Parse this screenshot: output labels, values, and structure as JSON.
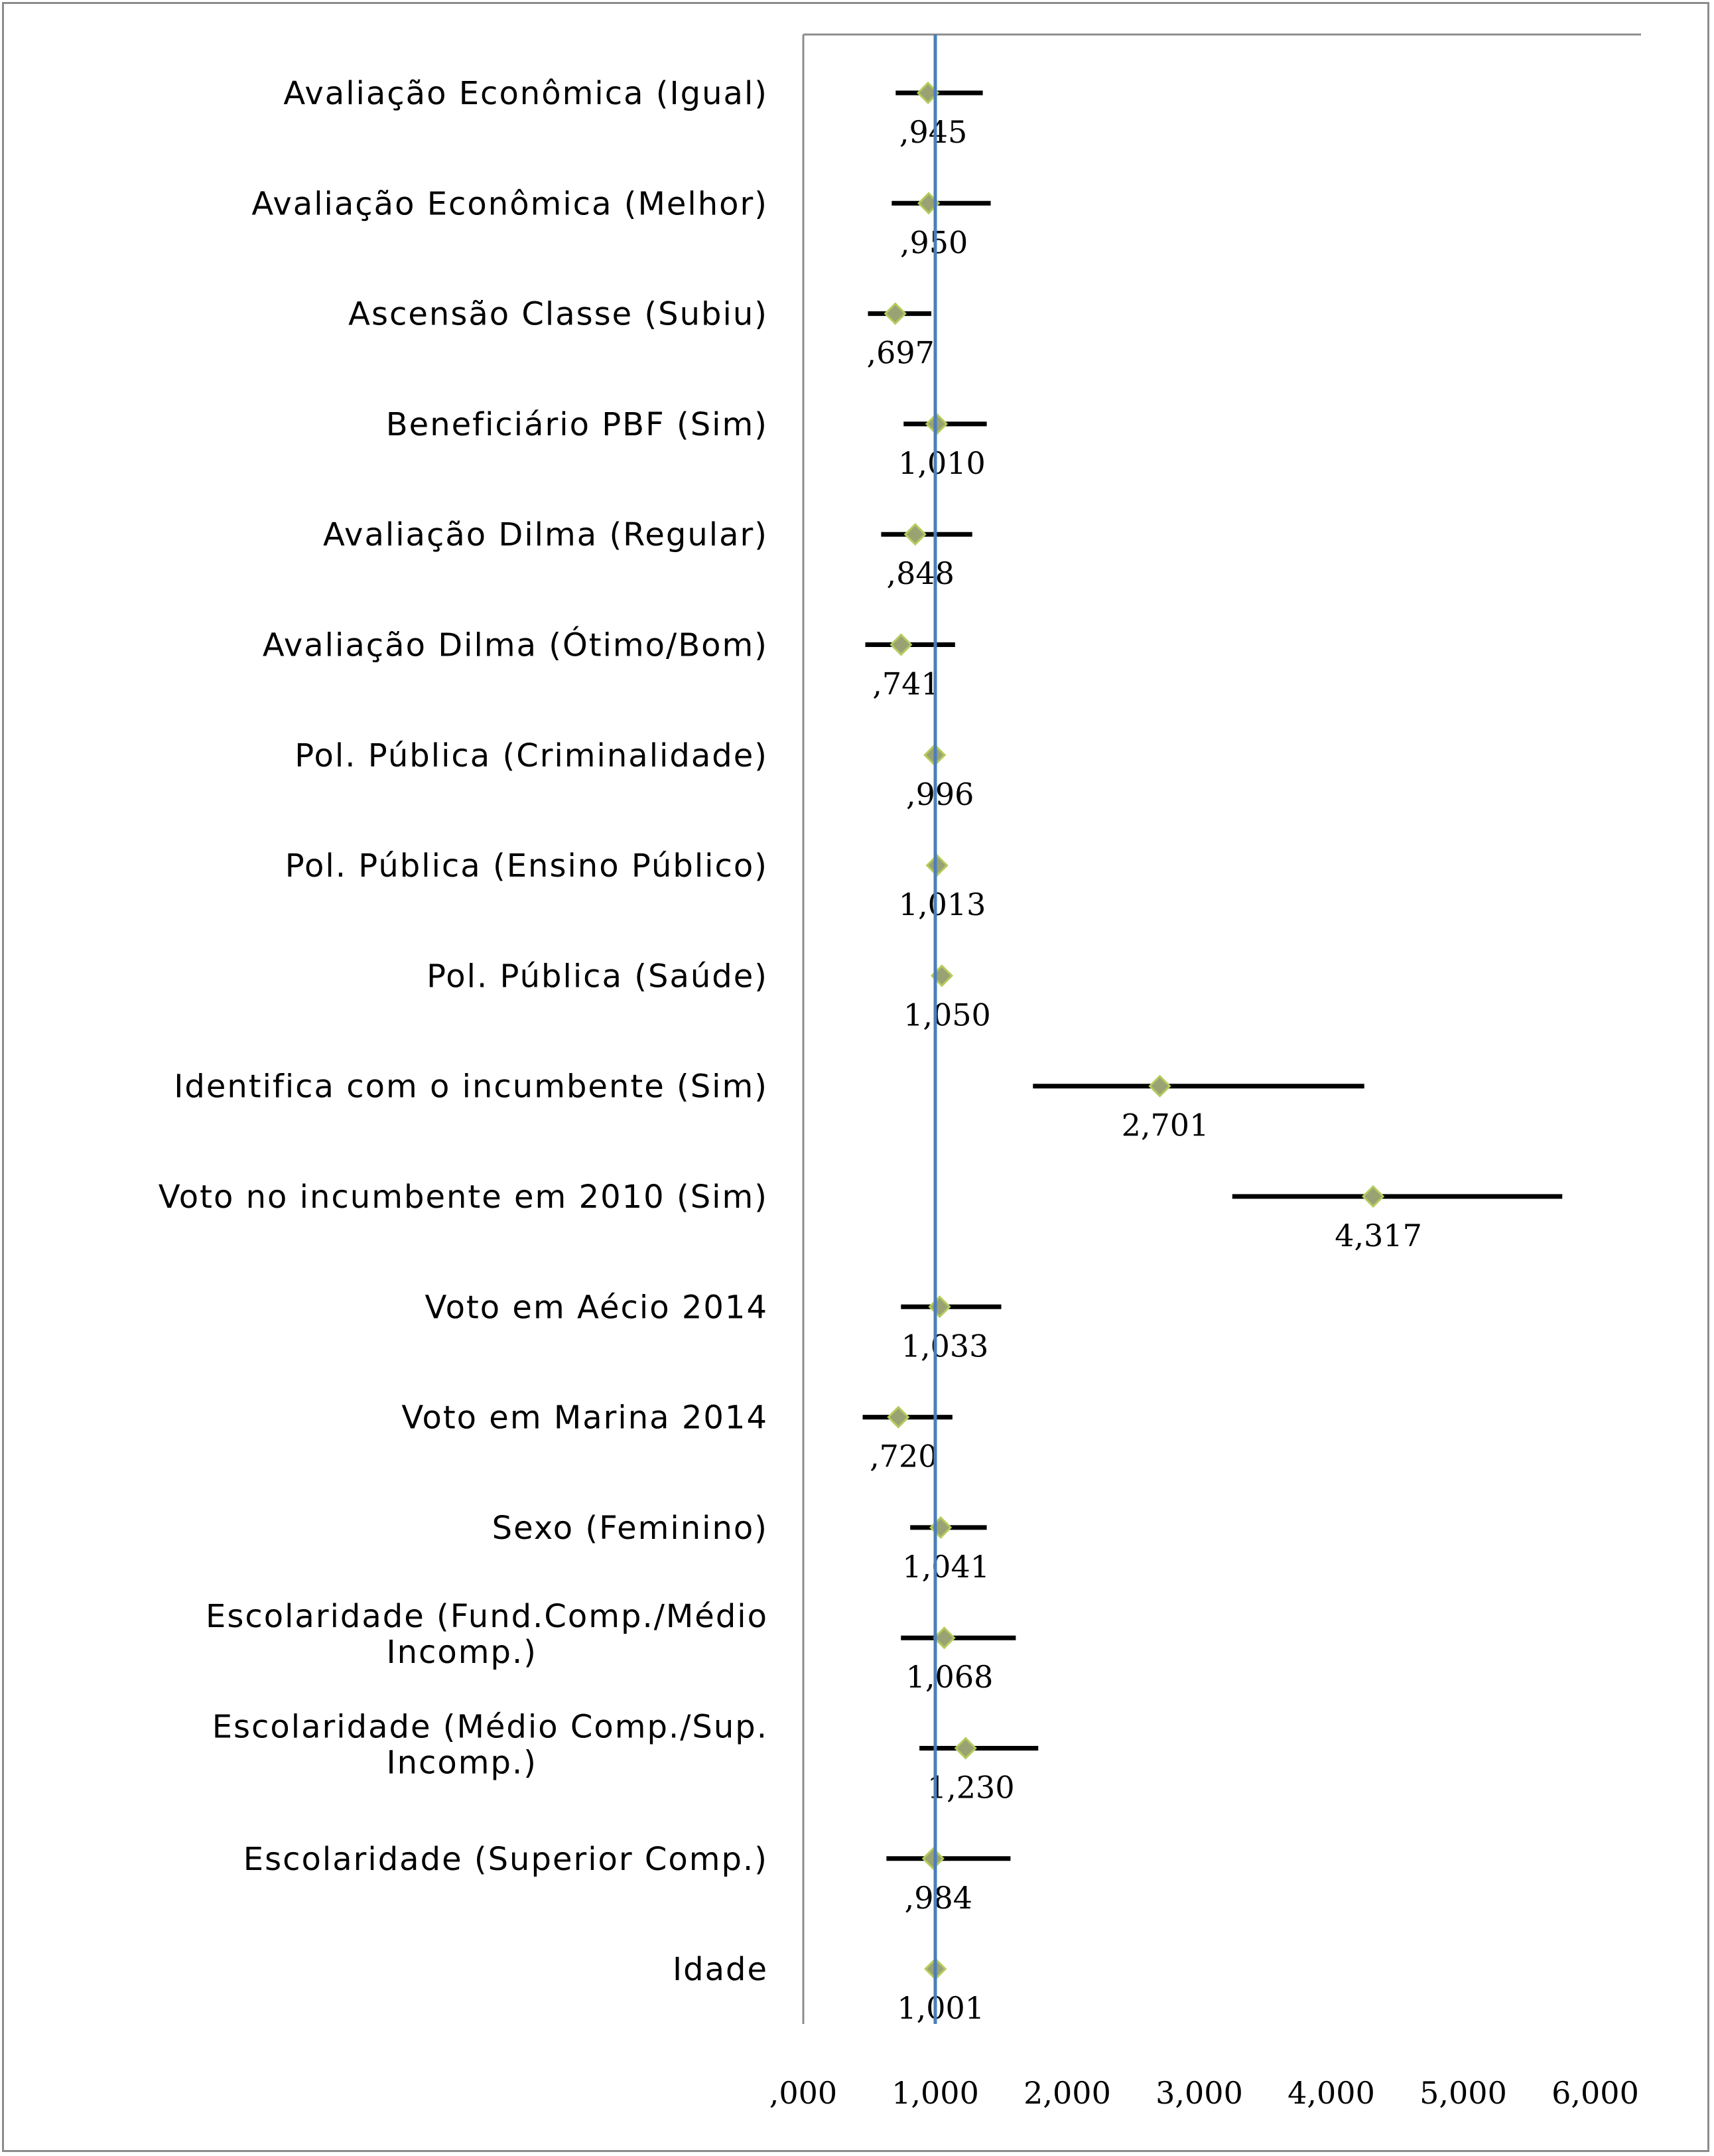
{
  "chart_data": {
    "type": "forest",
    "title": "",
    "xlabel": "",
    "ylabel": "",
    "xlim": [
      0,
      6
    ],
    "reference_line": 1,
    "x_tick_labels": [
      ",000",
      "1,000",
      "2,000",
      "3,000",
      "4,000",
      "5,000",
      "6,000"
    ],
    "x_ticks": [
      0,
      1,
      2,
      3,
      4,
      5,
      6
    ],
    "colors": {
      "marker_fill": "#9aa274",
      "marker_stroke": "#b4cc5c",
      "reference_line": "#4a7ebb",
      "ci_line": "#000000",
      "axis": "#8c8c8c"
    },
    "rows": [
      {
        "category": [
          "Avaliação Econômica (Igual)"
        ],
        "estimate": 0.945,
        "label": ",945",
        "ci_low": 0.7,
        "ci_high": 1.36
      },
      {
        "category": [
          "Avaliação Econômica (Melhor)"
        ],
        "estimate": 0.95,
        "label": ",950",
        "ci_low": 0.67,
        "ci_high": 1.42
      },
      {
        "category": [
          "Ascensão Classe (Subiu)"
        ],
        "estimate": 0.697,
        "label": ",697",
        "ci_low": 0.49,
        "ci_high": 0.97
      },
      {
        "category": [
          "Beneficiário PBF (Sim)"
        ],
        "estimate": 1.01,
        "label": "1,010",
        "ci_low": 0.76,
        "ci_high": 1.39
      },
      {
        "category": [
          "Avaliação Dilma (Regular)"
        ],
        "estimate": 0.848,
        "label": ",848",
        "ci_low": 0.59,
        "ci_high": 1.28
      },
      {
        "category": [
          "Avaliação Dilma (Ótimo/Bom)"
        ],
        "estimate": 0.741,
        "label": ",741",
        "ci_low": 0.47,
        "ci_high": 1.15
      },
      {
        "category": [
          "Pol. Pública (Criminalidade)"
        ],
        "estimate": 0.996,
        "label": ",996",
        "ci_low": 0.95,
        "ci_high": 1.05
      },
      {
        "category": [
          "Pol. Pública (Ensino Público)"
        ],
        "estimate": 1.013,
        "label": "1,013",
        "ci_low": 0.97,
        "ci_high": 1.06
      },
      {
        "category": [
          "Pol. Pública (Saúde)"
        ],
        "estimate": 1.05,
        "label": "1,050",
        "ci_low": 0.99,
        "ci_high": 1.12
      },
      {
        "category": [
          "Identifica com o incumbente (Sim)"
        ],
        "estimate": 2.701,
        "label": "2,701",
        "ci_low": 1.74,
        "ci_high": 4.25
      },
      {
        "category": [
          "Voto no incumbente em 2010 (Sim)"
        ],
        "estimate": 4.317,
        "label": "4,317",
        "ci_low": 3.25,
        "ci_high": 5.75
      },
      {
        "category": [
          "Voto em Aécio 2014"
        ],
        "estimate": 1.033,
        "label": "1,033",
        "ci_low": 0.74,
        "ci_high": 1.5
      },
      {
        "category": [
          "Voto em Marina 2014"
        ],
        "estimate": 0.72,
        "label": ",720",
        "ci_low": 0.45,
        "ci_high": 1.13
      },
      {
        "category": [
          "Sexo (Feminino)"
        ],
        "estimate": 1.041,
        "label": "1,041",
        "ci_low": 0.81,
        "ci_high": 1.39
      },
      {
        "category": [
          "Escolaridade (Fund.Comp./Médio",
          "Incomp.)"
        ],
        "estimate": 1.068,
        "label": "1,068",
        "ci_low": 0.74,
        "ci_high": 1.61
      },
      {
        "category": [
          "Escolaridade (Médio Comp./Sup.",
          "Incomp.)"
        ],
        "estimate": 1.23,
        "label": "1,230",
        "ci_low": 0.88,
        "ci_high": 1.78
      },
      {
        "category": [
          "Escolaridade (Superior Comp.)"
        ],
        "estimate": 0.984,
        "label": ",984",
        "ci_low": 0.63,
        "ci_high": 1.57
      },
      {
        "category": [
          "Idade"
        ],
        "estimate": 1.001,
        "label": "1,001",
        "ci_low": 0.99,
        "ci_high": 1.01
      }
    ]
  }
}
